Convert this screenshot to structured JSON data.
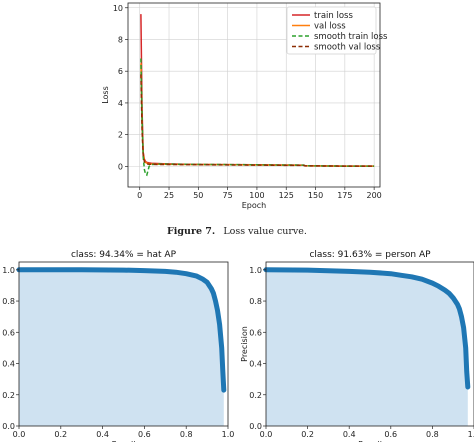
{
  "caption": {
    "label": "Figure 7.",
    "text": "Loss value curve."
  },
  "chart_data": [
    {
      "type": "line",
      "title": "",
      "xlabel": "Epoch",
      "ylabel": "Loss",
      "xlim": [
        -10,
        205
      ],
      "ylim": [
        -1.3,
        10.3
      ],
      "xticks": [
        0,
        25,
        50,
        75,
        100,
        125,
        150,
        175,
        200
      ],
      "yticks": [
        0,
        2,
        4,
        6,
        8,
        10
      ],
      "grid": true,
      "legend": "top-right",
      "series": [
        {
          "name": "train loss",
          "color": "#d62728",
          "style": "solid",
          "x": [
            1,
            2,
            3,
            4,
            5,
            6,
            8,
            10,
            15,
            20,
            30,
            40,
            60,
            80,
            100,
            120,
            140,
            141,
            150,
            175,
            200
          ],
          "y": [
            9.6,
            3.5,
            0.9,
            0.45,
            0.3,
            0.25,
            0.22,
            0.2,
            0.18,
            0.17,
            0.15,
            0.14,
            0.12,
            0.11,
            0.1,
            0.09,
            0.08,
            0.04,
            0.03,
            0.02,
            0.02
          ]
        },
        {
          "name": "val loss",
          "color": "#ff7f0e",
          "style": "solid",
          "x": [
            1,
            2,
            3,
            4,
            5,
            6,
            8,
            10,
            15,
            20,
            40,
            60,
            80,
            100,
            120,
            140,
            141,
            150,
            175,
            200
          ],
          "y": [
            6.5,
            2.5,
            0.8,
            0.35,
            0.25,
            0.2,
            0.17,
            0.15,
            0.14,
            0.13,
            0.12,
            0.11,
            0.1,
            0.09,
            0.08,
            0.07,
            0.03,
            0.03,
            0.02,
            0.02
          ]
        },
        {
          "name": "smooth train loss",
          "color": "#2ca02c",
          "style": "dashed",
          "x": [
            1,
            2,
            3,
            4,
            5,
            6,
            7,
            8,
            10,
            15,
            20,
            40,
            60,
            80,
            100,
            120,
            140,
            141,
            150,
            175,
            200
          ],
          "y": [
            6.8,
            3.0,
            0.6,
            -0.2,
            -0.5,
            -0.55,
            -0.3,
            0.0,
            0.12,
            0.15,
            0.15,
            0.13,
            0.12,
            0.11,
            0.1,
            0.09,
            0.08,
            0.04,
            0.03,
            0.02,
            0.02
          ]
        },
        {
          "name": "smooth val loss",
          "color": "#8c2d04",
          "style": "dashed",
          "x": [
            1,
            2,
            3,
            4,
            5,
            6,
            8,
            10,
            15,
            20,
            40,
            60,
            80,
            100,
            120,
            140,
            141,
            150,
            175,
            200
          ],
          "y": [
            5.8,
            2.2,
            0.7,
            0.3,
            0.2,
            0.16,
            0.14,
            0.13,
            0.12,
            0.12,
            0.11,
            0.1,
            0.09,
            0.08,
            0.07,
            0.06,
            0.03,
            0.03,
            0.02,
            0.02
          ]
        }
      ]
    },
    {
      "type": "area",
      "title": "class: 94.34% = hat AP",
      "xlabel": "Recall",
      "ylabel": "Precision",
      "xlim": [
        0,
        1.0
      ],
      "ylim": [
        0,
        1.05
      ],
      "xticks": [
        "0.0",
        "0.2",
        "0.4",
        "0.6",
        "0.8",
        "1.0"
      ],
      "yticks": [
        "0.0",
        "0.2",
        "0.4",
        "0.6",
        "0.8",
        "1.0"
      ],
      "grid": false,
      "color": "#1f77b4",
      "fill": "#cfe2f1",
      "series": [
        {
          "name": "",
          "x": [
            0.0,
            0.1,
            0.3,
            0.5,
            0.6,
            0.7,
            0.75,
            0.8,
            0.85,
            0.88,
            0.9,
            0.92,
            0.93,
            0.94,
            0.95,
            0.96,
            0.97,
            0.975,
            0.98
          ],
          "y": [
            1.0,
            1.0,
            1.0,
            0.998,
            0.995,
            0.99,
            0.985,
            0.975,
            0.96,
            0.94,
            0.92,
            0.88,
            0.85,
            0.8,
            0.74,
            0.65,
            0.5,
            0.35,
            0.23
          ]
        }
      ]
    },
    {
      "type": "area",
      "title": "class: 91.63% = person AP",
      "xlabel": "Recall",
      "ylabel": "Precision",
      "xlim": [
        0,
        1.0
      ],
      "ylim": [
        0,
        1.05
      ],
      "xticks": [
        "0.0",
        "0.2",
        "0.4",
        "0.6",
        "0.8",
        "1.0"
      ],
      "yticks": [
        "0.0",
        "0.2",
        "0.4",
        "0.6",
        "0.8",
        "1.0"
      ],
      "grid": false,
      "color": "#1f77b4",
      "fill": "#cfe2f1",
      "series": [
        {
          "name": "",
          "x": [
            0.0,
            0.2,
            0.4,
            0.5,
            0.6,
            0.65,
            0.7,
            0.75,
            0.8,
            0.83,
            0.86,
            0.88,
            0.9,
            0.92,
            0.93,
            0.94,
            0.95,
            0.96,
            0.965,
            0.97
          ],
          "y": [
            1.0,
            0.998,
            0.99,
            0.985,
            0.975,
            0.965,
            0.955,
            0.94,
            0.915,
            0.895,
            0.87,
            0.85,
            0.82,
            0.78,
            0.75,
            0.7,
            0.63,
            0.5,
            0.35,
            0.25
          ]
        }
      ]
    }
  ]
}
